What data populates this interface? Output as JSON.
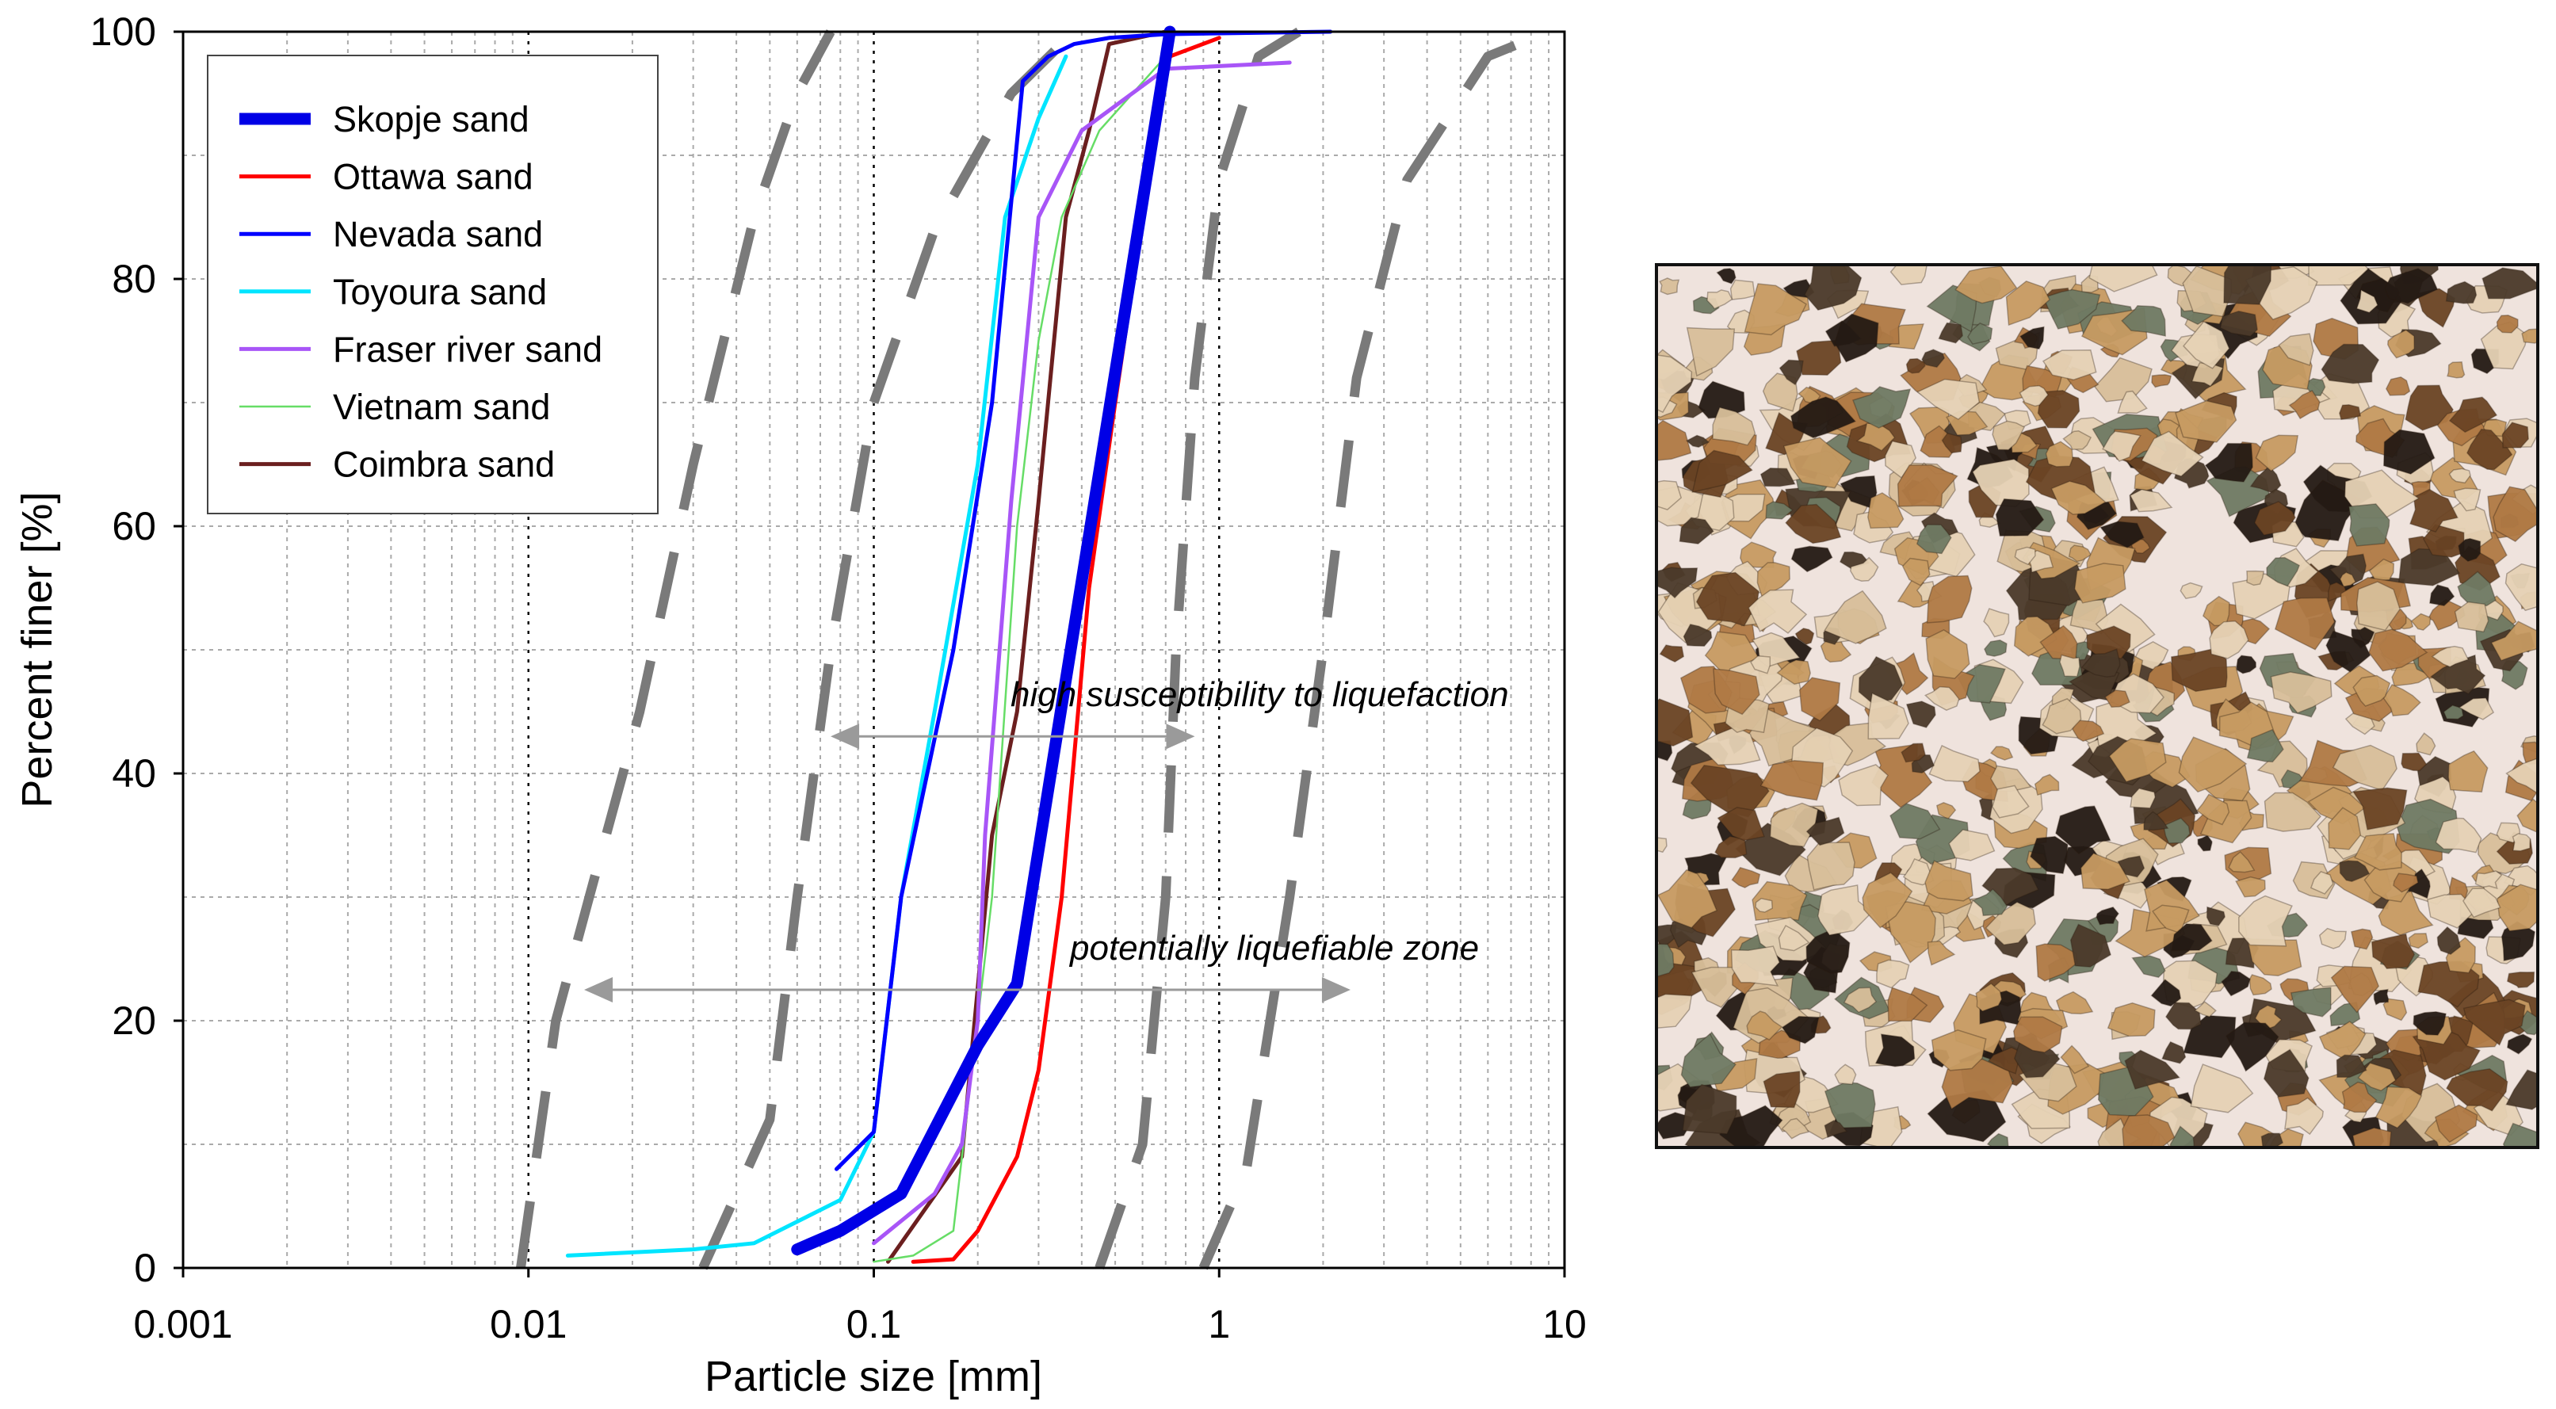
{
  "chart_data": {
    "type": "line",
    "xlabel": "Particle size [mm]",
    "ylabel": "Percent finer [%]",
    "x_scale": "log",
    "xlim": [
      0.001,
      10
    ],
    "ylim": [
      0,
      100
    ],
    "x_tick_values": [
      0.001,
      0.01,
      0.1,
      1,
      10
    ],
    "x_tick_labels": [
      "0.001",
      "0.01",
      "0.1",
      "1",
      "10"
    ],
    "y_tick_values": [
      0,
      20,
      40,
      60,
      80,
      100
    ],
    "y_tick_labels": [
      "0",
      "20",
      "40",
      "60",
      "80",
      "100"
    ],
    "grid": true,
    "legend_position": "top-left",
    "series": [
      {
        "name": "Skopje sand",
        "color": "#0000e6",
        "style": "thick",
        "x": [
          0.06,
          0.08,
          0.12,
          0.2,
          0.26,
          0.72
        ],
        "y": [
          1.5,
          3,
          6,
          18,
          23,
          100
        ]
      },
      {
        "name": "Ottawa sand",
        "color": "#ff0000",
        "style": "solid",
        "x": [
          0.13,
          0.17,
          0.2,
          0.26,
          0.3,
          0.35,
          0.42,
          0.5,
          0.6,
          0.72,
          1.0
        ],
        "y": [
          0.5,
          0.7,
          3,
          9,
          16,
          30,
          55,
          70,
          85,
          98,
          99.5
        ]
      },
      {
        "name": "Nevada sand",
        "color": "#0000ff",
        "style": "solid",
        "x": [
          0.078,
          0.1,
          0.12,
          0.17,
          0.22,
          0.27,
          0.32,
          0.38,
          0.48,
          0.7,
          2.1
        ],
        "y": [
          8,
          11,
          30,
          50,
          70,
          96,
          98,
          99,
          99.5,
          99.8,
          100
        ]
      },
      {
        "name": "Toyoura sand",
        "color": "#00e5ff",
        "style": "solid",
        "x": [
          0.013,
          0.03,
          0.045,
          0.08,
          0.1,
          0.12,
          0.15,
          0.2,
          0.24,
          0.3,
          0.36
        ],
        "y": [
          1,
          1.5,
          2,
          5.5,
          11,
          30,
          45,
          65,
          85,
          93,
          98
        ]
      },
      {
        "name": "Fraser river sand",
        "color": "#a855f7",
        "style": "solid",
        "x": [
          0.1,
          0.15,
          0.18,
          0.2,
          0.21,
          0.25,
          0.3,
          0.4,
          0.7,
          1.6
        ],
        "y": [
          2,
          6,
          10,
          20,
          35,
          62,
          85,
          92,
          97,
          97.5
        ]
      },
      {
        "name": "Vietnam sand",
        "color": "#66dd66",
        "style": "thin",
        "x": [
          0.1,
          0.13,
          0.17,
          0.22,
          0.26,
          0.3,
          0.35,
          0.45,
          0.7
        ],
        "y": [
          0.5,
          1,
          3,
          30,
          60,
          75,
          85,
          92,
          98
        ]
      },
      {
        "name": "Coimbra sand",
        "color": "#6b1f1f",
        "style": "solid",
        "x": [
          0.11,
          0.18,
          0.22,
          0.26,
          0.3,
          0.36,
          0.42,
          0.48,
          0.7
        ],
        "y": [
          0.5,
          9,
          35,
          45,
          62,
          85,
          92,
          99,
          100
        ]
      }
    ],
    "zone_boundaries": [
      {
        "style": "thick-dashed-gray",
        "x": [
          0.0095,
          0.012,
          0.015,
          0.021,
          0.03,
          0.045,
          0.06,
          0.075
        ],
        "y": [
          0,
          20,
          30,
          45,
          65,
          85,
          95,
          100
        ]
      },
      {
        "style": "thick-dashed-gray",
        "x": [
          0.032,
          0.05,
          0.06,
          0.075,
          0.1,
          0.15,
          0.25,
          0.38
        ],
        "y": [
          0,
          12,
          30,
          50,
          70,
          84,
          95,
          100
        ]
      },
      {
        "style": "thick-dashed-gray",
        "x": [
          0.45,
          0.6,
          0.7,
          0.75,
          0.85,
          1.0,
          1.3,
          1.7
        ],
        "y": [
          0,
          10,
          30,
          50,
          72,
          88,
          98,
          100
        ]
      },
      {
        "style": "thick-dashed-gray",
        "x": [
          0.9,
          1.2,
          1.6,
          2.0,
          2.5,
          3.5,
          6.0,
          9.0
        ],
        "y": [
          0,
          8,
          30,
          50,
          72,
          88,
          98,
          100
        ]
      }
    ],
    "annotations": [
      {
        "text": "high susceptibility to liquefaction",
        "x_from": 0.075,
        "x_to": 0.85,
        "y": 43
      },
      {
        "text": "potentially liquefiable zone",
        "x_from": 0.0145,
        "x_to": 2.4,
        "y": 22.5
      }
    ]
  },
  "photo": {
    "colors": {
      "background": "#efe3dd",
      "grain_light": "#e6d2b5",
      "grain_tan": "#c79b62",
      "grain_brown": "#6b4424",
      "grain_dark": "#241a14",
      "grain_green": "#6f7a63"
    }
  }
}
